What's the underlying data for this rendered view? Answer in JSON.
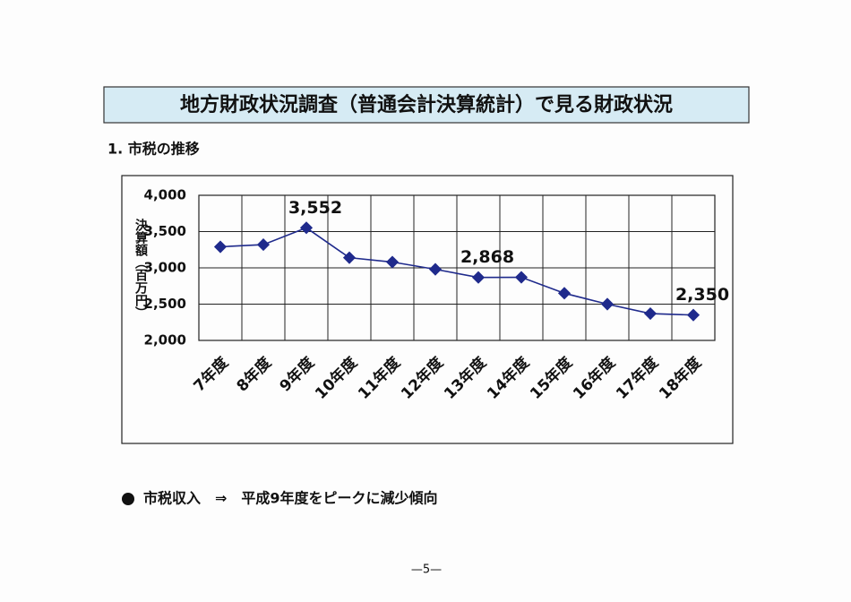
{
  "title": "地方財政状況調査（普通会計決算統計）で見る財政状況",
  "section": "1. 市税の推移",
  "chart_data": {
    "type": "line",
    "y_label": "決算額（百万円）",
    "categories": [
      "7年度",
      "8年度",
      "9年度",
      "10年度",
      "11年度",
      "12年度",
      "13年度",
      "14年度",
      "15年度",
      "16年度",
      "17年度",
      "18年度"
    ],
    "values": [
      3290,
      3320,
      3552,
      3140,
      3080,
      2980,
      2868,
      2870,
      2650,
      2500,
      2370,
      2350
    ],
    "value_labels": [
      null,
      null,
      "3,552",
      null,
      null,
      null,
      "2,868",
      null,
      null,
      null,
      null,
      "2,350"
    ],
    "color": "#1f2a8c",
    "ylim": [
      2000,
      4000
    ],
    "yticks": [
      {
        "value": 2000,
        "label": "2,000"
      },
      {
        "value": 2500,
        "label": "2,500"
      },
      {
        "value": 3000,
        "label": "3,000"
      },
      {
        "value": 3500,
        "label": "3,500"
      },
      {
        "value": 4000,
        "label": "4,000"
      }
    ],
    "grid": true
  },
  "note": "市税収入　⇒　平成9年度をピークに減少傾向",
  "page_number": "—5—"
}
